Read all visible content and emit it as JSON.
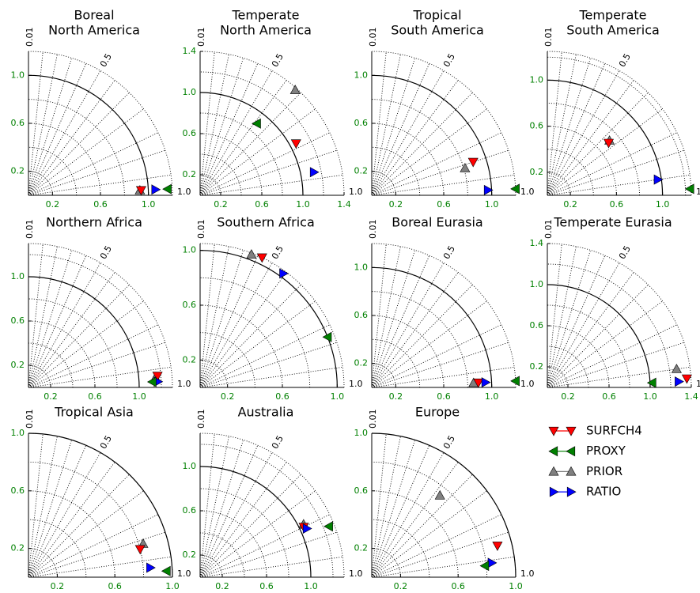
{
  "legend": [
    {
      "name": "SURFCH4",
      "color": "#ff0000",
      "marker": "v"
    },
    {
      "name": "PROXY",
      "color": "#008000",
      "marker": "<"
    },
    {
      "name": "PRIOR",
      "color": "#808080",
      "marker": "^"
    },
    {
      "name": "RATIO",
      "color": "#0000ff",
      "marker": ">"
    }
  ],
  "std_grid": [
    0.2,
    0.4,
    0.6,
    0.8,
    1.2,
    1.4
  ],
  "corr_grid": [
    0.1,
    0.2,
    0.3,
    0.4,
    0.5,
    0.6,
    0.7,
    0.8,
    0.9,
    0.95,
    0.99
  ],
  "reference_std": 1,
  "chart_data": [
    {
      "type": "taylor",
      "title": [
        "Boreal",
        "North America"
      ],
      "rlim": [
        0,
        1.2
      ],
      "xticks": [
        0.2,
        0.6,
        {
          "value": 1,
          "label": "1.0"
        }
      ],
      "yticks": [
        0.2,
        0.6,
        {
          "value": 1,
          "label": "1.0"
        }
      ],
      "corr_ticks": [
        0.01,
        0.5,
        {
          "value": 1,
          "label": "1.0"
        }
      ],
      "series": [
        {
          "std": 0.94,
          "corr": 0.999
        },
        {
          "std": 1.16,
          "corr": 0.999
        },
        {
          "std": 0.93,
          "corr": 0.999
        },
        {
          "std": 1.06,
          "corr": 0.999
        }
      ]
    },
    {
      "type": "taylor",
      "title": [
        "Temperate",
        "North America"
      ],
      "rlim": [
        0,
        1.4
      ],
      "xticks": [
        0.2,
        0.6,
        {
          "value": 1,
          "label": "1.0"
        },
        1.4
      ],
      "yticks": [
        0.2,
        0.6,
        {
          "value": 1,
          "label": "1.0"
        },
        1.4
      ],
      "corr_ticks": [
        0.01,
        0.5,
        {
          "value": 1,
          "label": "1.0"
        }
      ],
      "series": [
        {
          "std": 1.06,
          "corr": 0.88
        },
        {
          "std": 0.89,
          "corr": 0.62
        },
        {
          "std": 1.38,
          "corr": 0.67
        },
        {
          "std": 1.13,
          "corr": 0.98
        }
      ]
    },
    {
      "type": "taylor",
      "title": [
        "Tropical",
        "South America"
      ],
      "rlim": [
        0,
        1.2
      ],
      "xticks": [
        0.2,
        0.6,
        {
          "value": 1,
          "label": "1.0"
        }
      ],
      "yticks": [
        0.2,
        0.6,
        {
          "value": 1,
          "label": "1.0"
        }
      ],
      "corr_ticks": [
        0.01,
        0.5,
        {
          "value": 1,
          "label": "1.0"
        }
      ],
      "series": [
        {
          "std": 0.89,
          "corr": 0.95
        },
        {
          "std": 1.2,
          "corr": 0.999
        },
        {
          "std": 0.81,
          "corr": 0.96
        },
        {
          "std": 0.97,
          "corr": 0.999
        }
      ]
    },
    {
      "type": "taylor",
      "title": [
        "Temperate",
        "South America"
      ],
      "rlim": [
        0,
        1.25
      ],
      "xticks": [
        0.2,
        0.6,
        {
          "value": 1,
          "label": "1.0"
        }
      ],
      "yticks": [
        0.2,
        0.6,
        {
          "value": 1,
          "label": "1.0"
        }
      ],
      "corr_ticks": [
        0.01,
        0.5,
        {
          "value": 1,
          "label": "1.0"
        }
      ],
      "series": [
        {
          "std": 0.7,
          "corr": 0.76
        },
        {
          "std": 1.24,
          "corr": 0.999
        },
        {
          "std": 0.72,
          "corr": 0.75
        },
        {
          "std": 0.97,
          "corr": 0.99
        }
      ]
    },
    {
      "type": "taylor",
      "title": [
        "Northern Africa"
      ],
      "rlim": [
        0,
        1.3
      ],
      "xticks": [
        0.2,
        0.6,
        {
          "value": 1,
          "label": "1.0"
        }
      ],
      "yticks": [
        0.2,
        0.6,
        {
          "value": 1,
          "label": "1.0"
        }
      ],
      "corr_ticks": [
        0.01,
        0.5,
        {
          "value": 1,
          "label": "1.0"
        }
      ],
      "series": [
        {
          "std": 1.17,
          "corr": 0.996
        },
        {
          "std": 1.12,
          "corr": 0.999
        },
        {
          "std": 1.15,
          "corr": 0.997
        },
        {
          "std": 1.17,
          "corr": 0.999
        }
      ]
    },
    {
      "type": "taylor",
      "title": [
        "Southern Africa"
      ],
      "rlim": [
        0,
        1.05
      ],
      "xticks": [
        0.2,
        0.6,
        {
          "value": 1,
          "label": "1.0"
        }
      ],
      "yticks": [
        0.2,
        0.6,
        {
          "value": 1,
          "label": "1.0"
        }
      ],
      "corr_ticks": [
        0.01,
        0.5,
        {
          "value": 1,
          "label": "1.0"
        }
      ],
      "series": [
        {
          "std": 1.05,
          "corr": 0.43
        },
        {
          "std": 1.0,
          "corr": 0.93
        },
        {
          "std": 1.04,
          "corr": 0.36
        },
        {
          "std": 1.03,
          "corr": 0.59
        }
      ]
    },
    {
      "type": "taylor",
      "title": [
        "Boreal Eurasia"
      ],
      "rlim": [
        0,
        1.2
      ],
      "xticks": [
        0.2,
        0.6,
        {
          "value": 1,
          "label": "1.0"
        }
      ],
      "yticks": [
        0.2,
        0.6,
        {
          "value": 1,
          "label": "1.0"
        }
      ],
      "corr_ticks": [
        0.01,
        0.5,
        {
          "value": 1,
          "label": "1.0"
        }
      ],
      "series": [
        {
          "std": 0.89,
          "corr": 0.999
        },
        {
          "std": 1.2,
          "corr": 0.999
        },
        {
          "std": 0.85,
          "corr": 0.999
        },
        {
          "std": 0.95,
          "corr": 0.999
        }
      ]
    },
    {
      "type": "taylor",
      "title": [
        "Temperate Eurasia"
      ],
      "rlim": [
        0,
        1.4
      ],
      "xticks": [
        0.2,
        0.6,
        {
          "value": 1,
          "label": "1.0"
        },
        1.4
      ],
      "yticks": [
        0.2,
        0.6,
        {
          "value": 1,
          "label": "1.0"
        },
        1.4
      ],
      "corr_ticks": [
        0.01,
        0.5,
        {
          "value": 1,
          "label": "1.0"
        }
      ],
      "series": [
        {
          "std": 1.36,
          "corr": 0.998
        },
        {
          "std": 1.02,
          "corr": 0.999
        },
        {
          "std": 1.27,
          "corr": 0.99
        },
        {
          "std": 1.28,
          "corr": 0.999
        }
      ]
    },
    {
      "type": "taylor",
      "title": [
        "Tropical Asia"
      ],
      "rlim": [
        0,
        1.0
      ],
      "xticks": [
        0.2,
        0.6,
        {
          "value": 1,
          "label": "1.0"
        }
      ],
      "yticks": [
        0.2,
        0.6,
        {
          "value": 1,
          "label": "1.0"
        }
      ],
      "corr_ticks": [
        0.01,
        0.5,
        {
          "value": 1,
          "label": "1.0"
        }
      ],
      "series": [
        {
          "std": 0.8,
          "corr": 0.97
        },
        {
          "std": 0.96,
          "corr": 0.999
        },
        {
          "std": 0.83,
          "corr": 0.96
        },
        {
          "std": 0.85,
          "corr": 0.997
        }
      ]
    },
    {
      "type": "taylor",
      "title": [
        "Australia"
      ],
      "rlim": [
        0,
        1.3
      ],
      "xticks": [
        0.2,
        0.6,
        {
          "value": 1,
          "label": "1.0"
        }
      ],
      "yticks": [
        0.2,
        0.6,
        {
          "value": 1,
          "label": "1.0"
        }
      ],
      "corr_ticks": [
        0.01,
        0.5,
        {
          "value": 1,
          "label": "1.0"
        }
      ],
      "series": [
        {
          "std": 1.04,
          "corr": 0.9
        },
        {
          "std": 1.25,
          "corr": 0.93
        },
        {
          "std": 1.05,
          "corr": 0.89
        },
        {
          "std": 1.06,
          "corr": 0.91
        }
      ]
    },
    {
      "type": "taylor",
      "title": [
        "Europe"
      ],
      "rlim": [
        0,
        1.0
      ],
      "xticks": [
        0.2,
        0.6,
        {
          "value": 1,
          "label": "1.0"
        }
      ],
      "yticks": [
        0.2,
        0.6,
        {
          "value": 1,
          "label": "1.0"
        }
      ],
      "corr_ticks": [
        0.01,
        0.5,
        {
          "value": 1,
          "label": "1.0"
        }
      ],
      "series": [
        {
          "std": 0.9,
          "corr": 0.97
        },
        {
          "std": 0.79,
          "corr": 0.995
        },
        {
          "std": 0.74,
          "corr": 0.64
        },
        {
          "std": 0.84,
          "corr": 0.993
        }
      ]
    }
  ]
}
